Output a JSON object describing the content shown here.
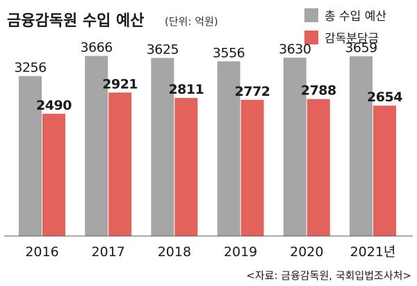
{
  "chart_data": {
    "type": "bar",
    "title": "금융감독원 수입 예산",
    "unit": "(단위: 억원)",
    "categories": [
      "2016",
      "2017",
      "2018",
      "2019",
      "2020",
      "2021년"
    ],
    "series": [
      {
        "name": "총 수입 예산",
        "color": "#a6a6a6",
        "values": [
          3256,
          3666,
          3625,
          3556,
          3630,
          3659
        ]
      },
      {
        "name": "감독분담금",
        "color": "#e3625b",
        "values": [
          2490,
          2921,
          2811,
          2772,
          2788,
          2654
        ]
      }
    ],
    "ylim": [
      0,
      3900
    ],
    "grid": false,
    "legend_position": "top-right",
    "source": "<자료: 금융감독원, 국회입법조사처>"
  }
}
